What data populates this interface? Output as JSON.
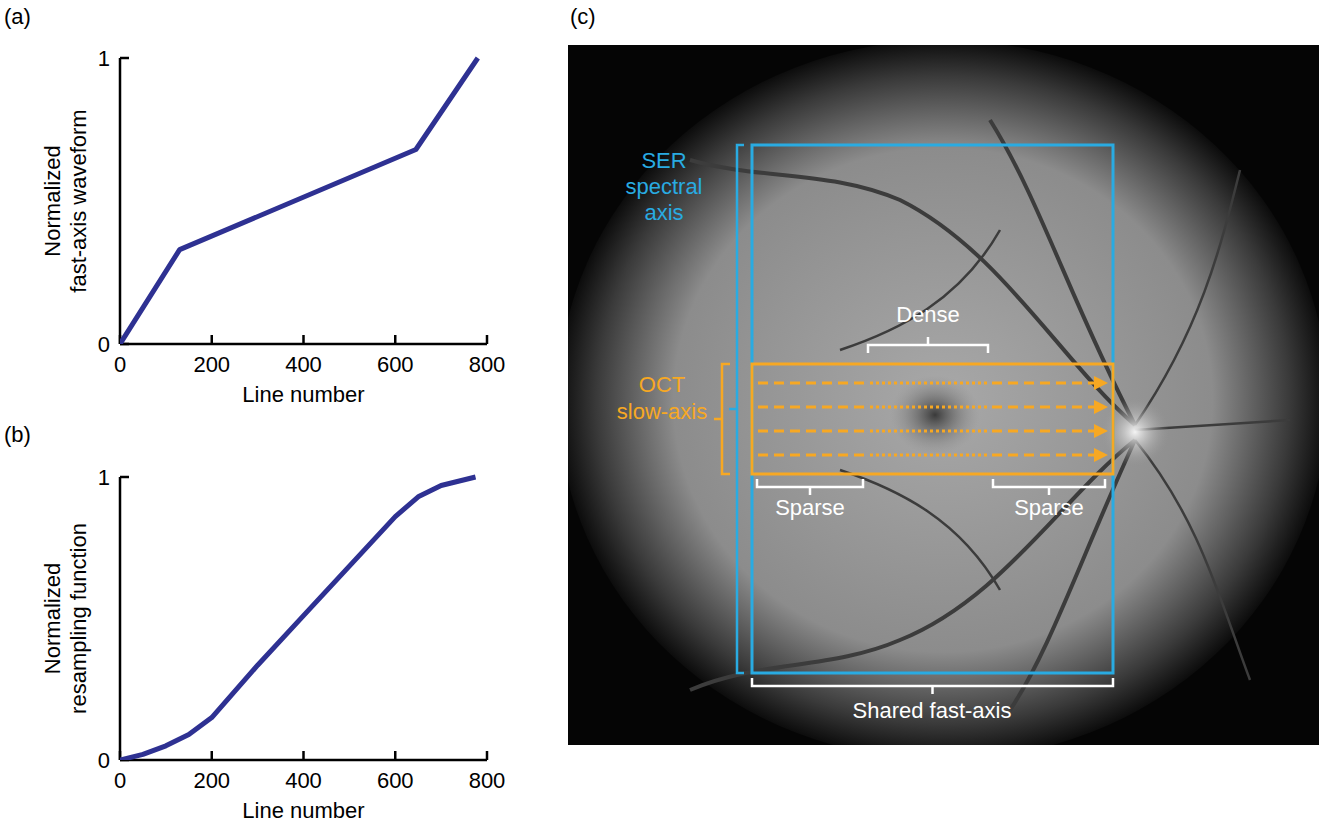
{
  "chart_data": [
    {
      "type": "line",
      "title": "(a)",
      "x_label": "Line number",
      "y_label": "Normalized fast-axis waveform",
      "x": [
        0,
        130,
        645,
        780
      ],
      "values": [
        0,
        0.33,
        0.68,
        1
      ],
      "color": "#2e3192",
      "xlim": [
        0,
        800
      ],
      "ylim": [
        0,
        1
      ],
      "xticks": [
        0,
        200,
        400,
        600,
        800
      ],
      "yticks": [
        0,
        1
      ]
    },
    {
      "type": "line",
      "title": "(b)",
      "x_label": "Line number",
      "y_label": "Normalized resampling function",
      "x": [
        0,
        50,
        100,
        150,
        200,
        300,
        400,
        500,
        600,
        650,
        700,
        775
      ],
      "values": [
        0,
        0.02,
        0.05,
        0.09,
        0.15,
        0.335,
        0.51,
        0.685,
        0.86,
        0.93,
        0.97,
        1
      ],
      "color": "#2e3192",
      "xlim": [
        0,
        800
      ],
      "ylim": [
        0,
        1
      ],
      "xticks": [
        0,
        200,
        400,
        600,
        800
      ],
      "yticks": [
        0,
        1
      ]
    }
  ],
  "image_panel": {
    "label": "(c)",
    "ser_label": "SER spectral axis",
    "oct_label": "OCT slow-axis",
    "dense_label": "Dense",
    "sparse_labels": [
      "Sparse",
      "Sparse"
    ],
    "shared_label": "Shared fast-axis",
    "ser_color": "#29abe2",
    "oct_color": "#f7a823"
  }
}
